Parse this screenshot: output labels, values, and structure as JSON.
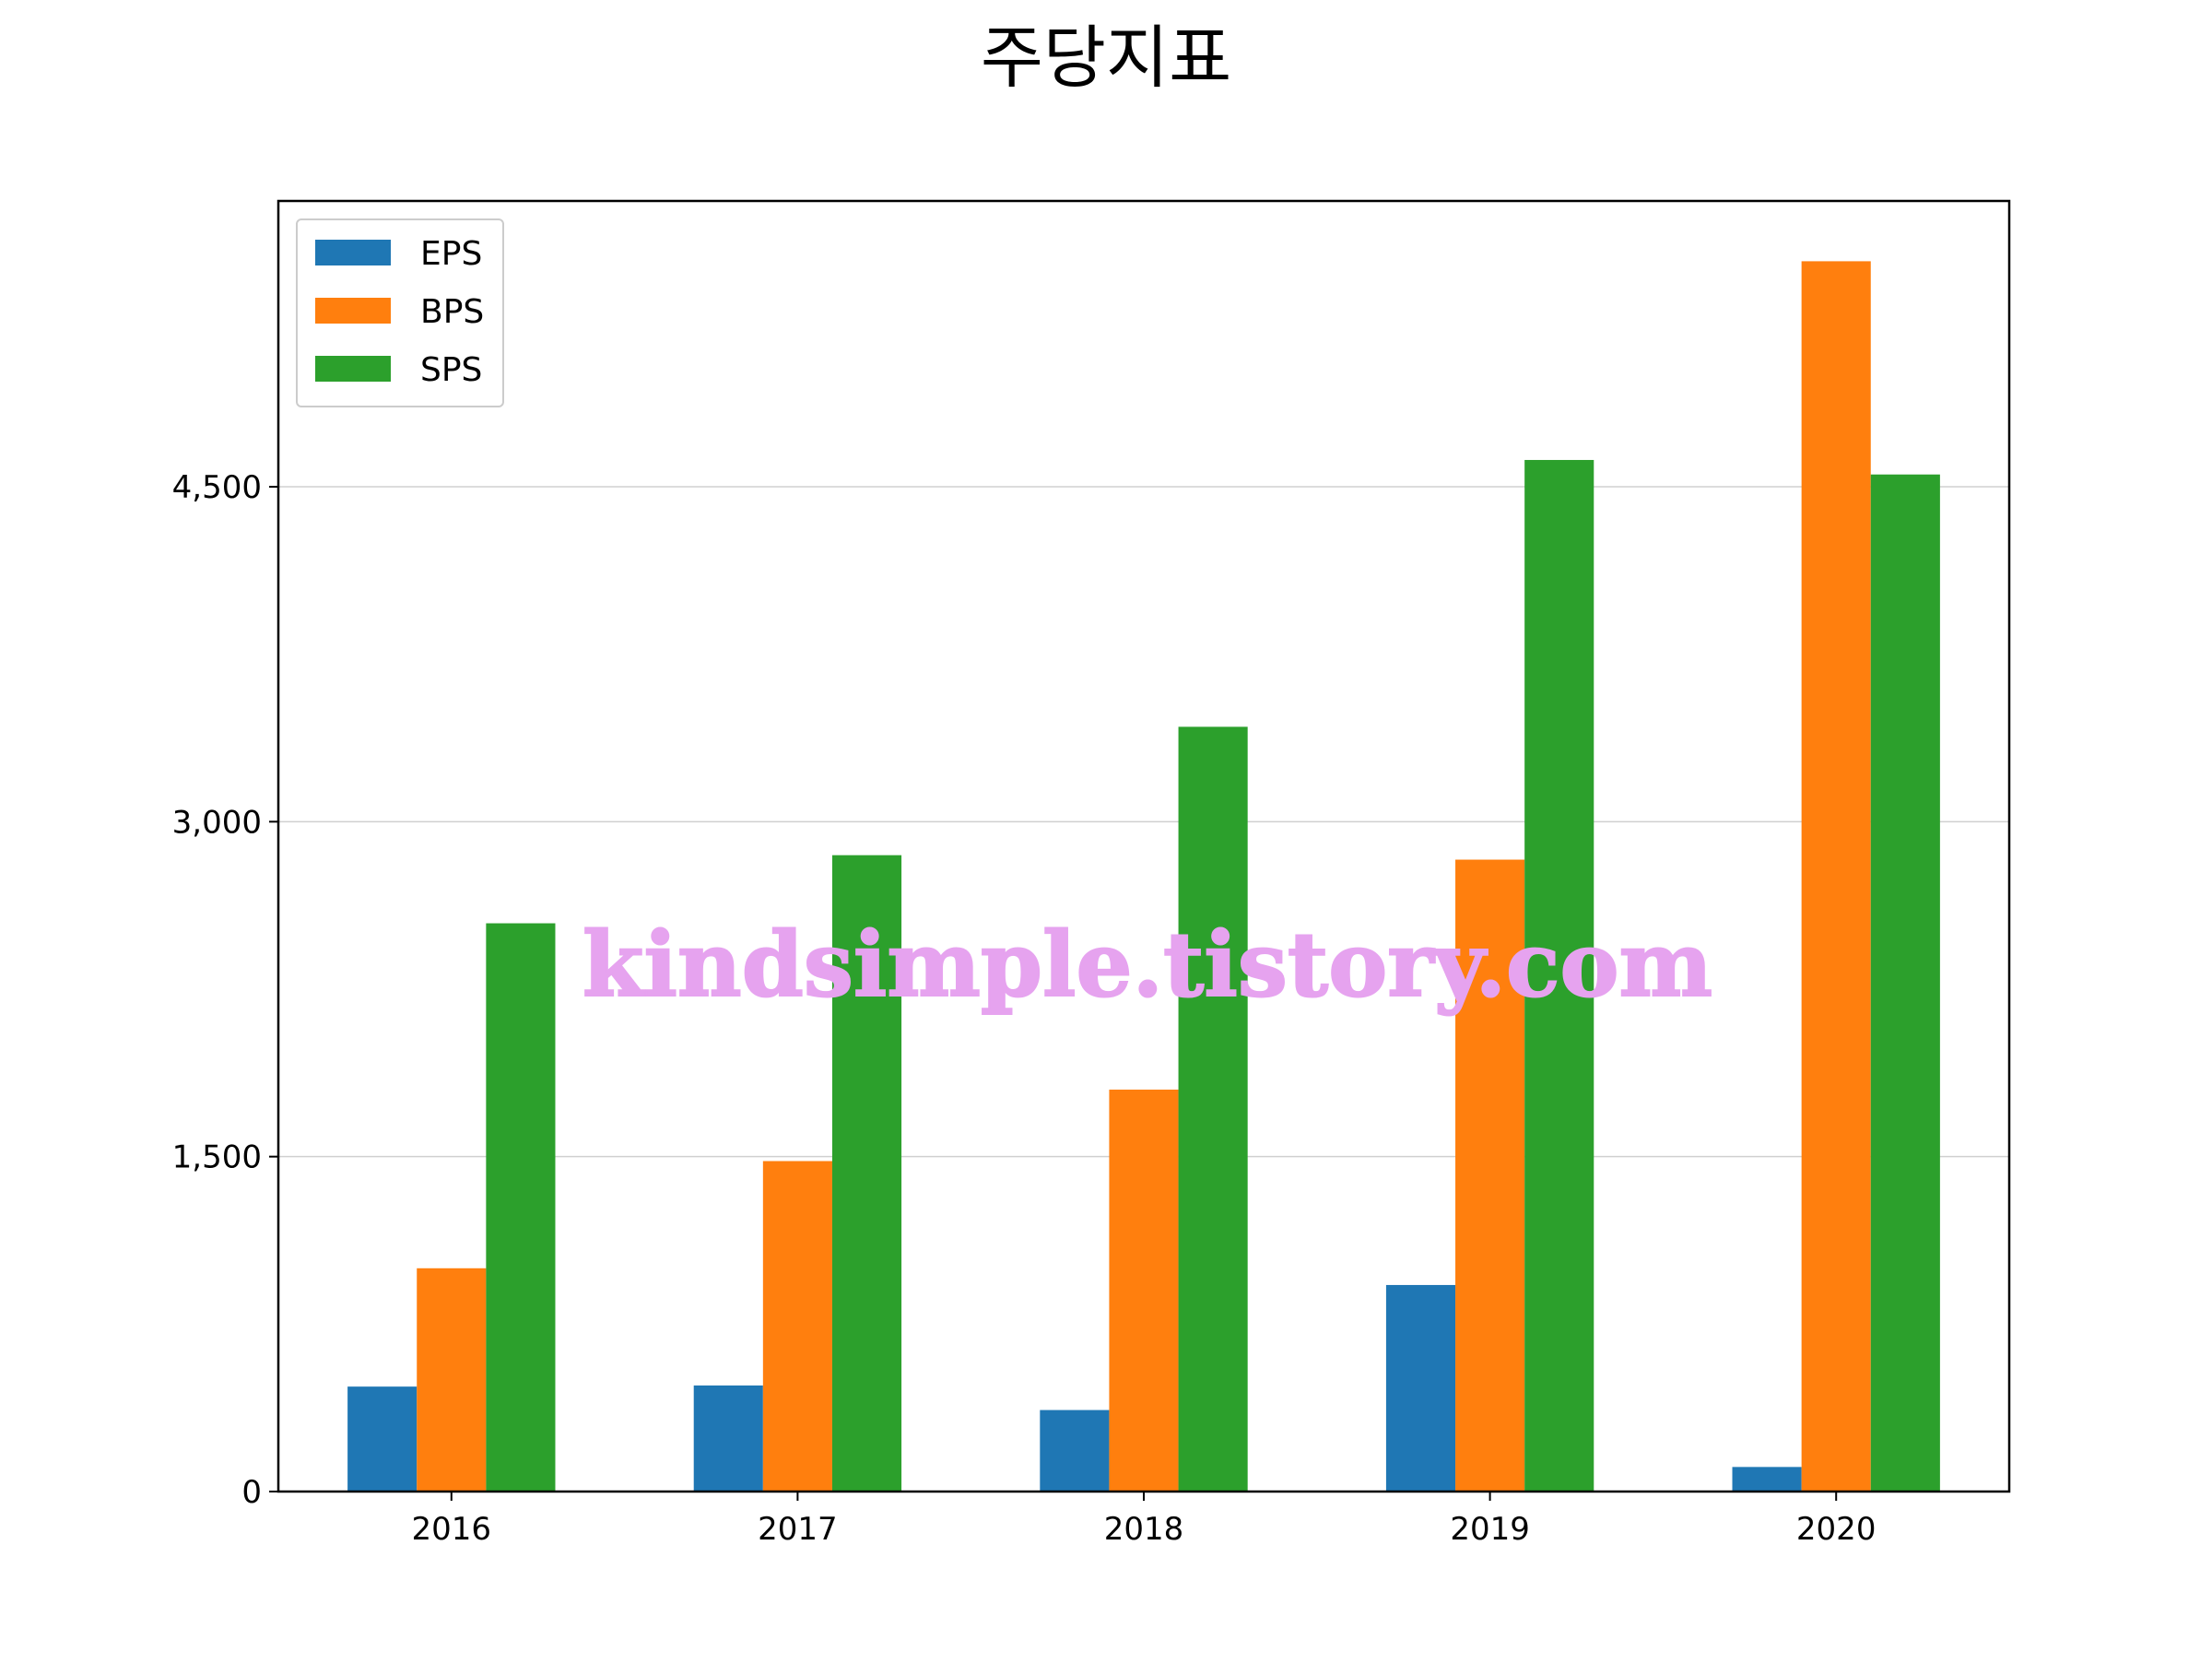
{
  "chart_data": {
    "type": "bar",
    "title": "주당지표",
    "xlabel": "",
    "ylabel": "",
    "categories": [
      "2016",
      "2017",
      "2018",
      "2019",
      "2020"
    ],
    "series": [
      {
        "name": "EPS",
        "color": "#1f77b4",
        "values": [
          470,
          475,
          365,
          925,
          110
        ]
      },
      {
        "name": "BPS",
        "color": "#ff7f0e",
        "values": [
          1000,
          1480,
          1800,
          2830,
          5510
        ]
      },
      {
        "name": "SPS",
        "color": "#2ca02c",
        "values": [
          2545,
          2850,
          3425,
          4620,
          4555
        ]
      }
    ],
    "ylim": [
      0,
      5780
    ],
    "yticks": [
      0,
      1500,
      3000,
      4500
    ],
    "ytick_labels": [
      "0",
      "1,500",
      "3,000",
      "4,500"
    ],
    "grid": "horizontal",
    "legend_position": "top-left"
  },
  "watermark": "kindsimple.tistory.com"
}
